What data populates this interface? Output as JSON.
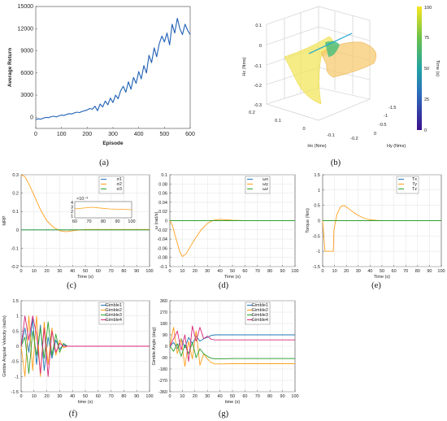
{
  "panel_labels": [
    "(a)",
    "(b)",
    "(c)",
    "(d)",
    "(e)",
    "(f)",
    "(g)"
  ],
  "chart_data": [
    {
      "panel": "(a)",
      "type": "line",
      "xlabel": "Episode",
      "ylabel": "Average Return",
      "xlim": [
        0,
        600
      ],
      "ylim": [
        -1500,
        15000
      ],
      "xticks": [
        "0",
        "100",
        "200",
        "300",
        "400",
        "500",
        "600"
      ],
      "yticks": [
        "0",
        "3000",
        "6000",
        "9000",
        "12000",
        "15000"
      ],
      "series": [
        {
          "color": "#1f5fb4",
          "x": [
            0,
            10,
            20,
            30,
            40,
            50,
            60,
            70,
            80,
            90,
            100,
            110,
            120,
            130,
            140,
            150,
            160,
            170,
            180,
            190,
            200,
            210,
            220,
            230,
            240,
            250,
            260,
            270,
            280,
            290,
            300,
            310,
            320,
            330,
            340,
            350,
            360,
            370,
            380,
            390,
            400,
            410,
            420,
            430,
            440,
            450,
            460,
            470,
            480,
            490,
            500,
            510,
            520,
            530,
            540,
            550,
            560,
            570,
            580,
            590,
            600
          ],
          "y": [
            -300,
            -200,
            -250,
            -100,
            0,
            -50,
            100,
            150,
            50,
            200,
            300,
            250,
            400,
            500,
            450,
            600,
            700,
            650,
            800,
            900,
            1000,
            1200,
            1100,
            1500,
            900,
            1800,
            1400,
            2200,
            1700,
            2600,
            2000,
            3000,
            2500,
            3600,
            4200,
            3400,
            4800,
            3800,
            5400,
            4600,
            6200,
            5200,
            7000,
            6000,
            8400,
            7400,
            9400,
            8200,
            10000,
            11000,
            10200,
            11400,
            9800,
            12600,
            11400,
            13400,
            12000,
            11200,
            12600,
            11800,
            11200
          ]
        }
      ]
    },
    {
      "panel": "(b)",
      "type": "surface3d",
      "xlabel": "Hx (Nms)",
      "ylabel": "Hy (Nms)",
      "zlabel": "Hz (Nms)",
      "colorbar_label": "Time (s)",
      "colorbar_range": [
        0,
        100
      ],
      "colorbar_ticks": [
        "100",
        "75",
        "50",
        "25",
        "0"
      ],
      "x_ticks": [
        "0.2",
        "0.1",
        "0",
        "-0.1",
        "-0.2"
      ],
      "y_ticks": [
        "-1.5",
        "-1",
        "-0.5",
        "0"
      ],
      "z_ticks": [
        "0.1",
        "0",
        "-0.1",
        "-0.2",
        "-0.3"
      ]
    },
    {
      "panel": "(c)",
      "type": "line",
      "xlabel": "Time (s)",
      "ylabel": "MRP",
      "xlim": [
        0,
        100
      ],
      "ylim": [
        -0.2,
        0.3
      ],
      "xticks": [
        "0",
        "10",
        "20",
        "30",
        "40",
        "50",
        "60",
        "70",
        "80",
        "90",
        "100"
      ],
      "yticks": [
        "0.3",
        "0.2",
        "0.1",
        "0",
        "-0.1",
        "-0.2"
      ],
      "legend": [
        "σ1",
        "σ2",
        "σ3"
      ],
      "inset": {
        "multiplier": "×10⁻³",
        "xticks": [
          "60",
          "70",
          "80",
          "90",
          "100"
        ],
        "yticks": [
          "4",
          "3",
          "2",
          "1"
        ]
      },
      "series": [
        {
          "name": "σ1",
          "color": "#1f77b4",
          "x": [
            0,
            100
          ],
          "y": [
            0,
            0
          ]
        },
        {
          "name": "σ2",
          "color": "#ff9f1c",
          "x": [
            0,
            3,
            6,
            10,
            15,
            20,
            25,
            30,
            35,
            40,
            50,
            60,
            100
          ],
          "y": [
            0.3,
            0.29,
            0.25,
            0.19,
            0.11,
            0.05,
            0.015,
            -0.005,
            -0.01,
            -0.005,
            0.002,
            0.002,
            0.002
          ]
        },
        {
          "name": "σ3",
          "color": "#2ca02c",
          "x": [
            0,
            100
          ],
          "y": [
            0,
            0
          ]
        }
      ]
    },
    {
      "panel": "(d)",
      "type": "line",
      "xlabel": "Time (s)",
      "ylabel": "ω (rad/s)",
      "xlim": [
        0,
        100
      ],
      "ylim": [
        -0.1,
        0.1
      ],
      "xticks": [
        "0",
        "10",
        "20",
        "30",
        "40",
        "50",
        "60",
        "70",
        "80",
        "90",
        "100"
      ],
      "yticks": [
        "0.1",
        "0.08",
        "0.06",
        "0.04",
        "0.02",
        "0",
        "-0.02",
        "-0.04",
        "-0.06",
        "-0.08",
        "-0.1"
      ],
      "legend": [
        "ωx",
        "ωy",
        "ωz"
      ],
      "series": [
        {
          "name": "ωx",
          "color": "#1f77b4",
          "x": [
            0,
            100
          ],
          "y": [
            0,
            0
          ]
        },
        {
          "name": "ωy",
          "color": "#ff9f1c",
          "x": [
            0,
            2,
            5,
            8,
            10,
            13,
            16,
            20,
            25,
            30,
            35,
            40,
            45,
            50,
            60,
            100
          ],
          "y": [
            0,
            -0.01,
            -0.04,
            -0.068,
            -0.078,
            -0.072,
            -0.058,
            -0.04,
            -0.02,
            -0.006,
            0.001,
            0.003,
            0.002,
            0.001,
            0,
            0
          ]
        },
        {
          "name": "ωz",
          "color": "#2ca02c",
          "x": [
            0,
            100
          ],
          "y": [
            0,
            0
          ]
        }
      ]
    },
    {
      "panel": "(e)",
      "type": "line",
      "xlabel": "Time (s)",
      "ylabel": "Torque (Nm)",
      "xlim": [
        0,
        100
      ],
      "ylim": [
        -1.5,
        1.5
      ],
      "xticks": [
        "0",
        "10",
        "20",
        "30",
        "40",
        "50",
        "60",
        "70",
        "80",
        "90",
        "100"
      ],
      "yticks": [
        "1.5",
        "1",
        "0.5",
        "0",
        "-0.5",
        "-1",
        "-1.5"
      ],
      "legend": [
        "Tx",
        "Ty",
        "Tz"
      ],
      "series": [
        {
          "name": "Tx",
          "color": "#1f77b4",
          "x": [
            0,
            100
          ],
          "y": [
            0,
            0
          ]
        },
        {
          "name": "Ty",
          "color": "#ff9f1c",
          "x": [
            0,
            2,
            9,
            9.5,
            12,
            15,
            18,
            21,
            25,
            30,
            35,
            40,
            45,
            50,
            60,
            100
          ],
          "y": [
            0,
            -1,
            -1,
            -0.3,
            0.2,
            0.45,
            0.5,
            0.42,
            0.3,
            0.17,
            0.08,
            0.03,
            0.01,
            0,
            0,
            0
          ]
        },
        {
          "name": "Tz",
          "color": "#2ca02c",
          "x": [
            0,
            100
          ],
          "y": [
            0,
            0
          ]
        }
      ]
    },
    {
      "panel": "(f)",
      "type": "line",
      "xlabel": "time (s)",
      "ylabel": "Gimble Angular Velocity (rad/s)",
      "xlim": [
        0,
        100
      ],
      "ylim": [
        -1.5,
        1.5
      ],
      "xticks": [
        "0",
        "10",
        "20",
        "30",
        "40",
        "50",
        "60",
        "70",
        "80",
        "90",
        "100"
      ],
      "yticks": [
        "1.5",
        "1",
        "0.5",
        "0",
        "-0.5",
        "-1",
        "-1.5"
      ],
      "legend": [
        "Gimble1",
        "Gimble2",
        "Gimble3",
        "Gimble4"
      ],
      "series": [
        {
          "name": "Gimble1",
          "color": "#1f77b4",
          "x": [
            0,
            3,
            6,
            9,
            12,
            15,
            18,
            21,
            24,
            27,
            30,
            33,
            36,
            40,
            100
          ],
          "y": [
            0,
            0.6,
            -0.2,
            0.9,
            -0.6,
            0.7,
            -0.8,
            0.3,
            -0.4,
            0.2,
            -0.1,
            0.05,
            0,
            0,
            0
          ]
        },
        {
          "name": "Gimble2",
          "color": "#ff9f1c",
          "x": [
            0,
            3,
            6,
            9,
            12,
            15,
            18,
            21,
            24,
            27,
            30,
            33,
            36,
            40,
            100
          ],
          "y": [
            0,
            -1,
            1,
            -0.8,
            1,
            -1,
            0.8,
            -0.6,
            0.6,
            -0.3,
            0.2,
            -0.05,
            0,
            0,
            0
          ]
        },
        {
          "name": "Gimble3",
          "color": "#2ca02c",
          "x": [
            0,
            3,
            6,
            9,
            12,
            15,
            18,
            21,
            24,
            27,
            30,
            33,
            36,
            40,
            100
          ],
          "y": [
            0,
            0.3,
            -0.9,
            0.5,
            -0.3,
            0.6,
            -0.4,
            0.8,
            -0.3,
            0.4,
            -0.2,
            0.1,
            0,
            0,
            0
          ]
        },
        {
          "name": "Gimble4",
          "color": "#d62778",
          "x": [
            0,
            3,
            6,
            9,
            12,
            15,
            18,
            21,
            24,
            27,
            30,
            33,
            36,
            40,
            100
          ],
          "y": [
            0,
            1,
            0.2,
            1,
            0.4,
            -0.9,
            0.6,
            -1,
            0.5,
            -0.2,
            0.1,
            0,
            0,
            0,
            0
          ]
        }
      ]
    },
    {
      "panel": "(g)",
      "type": "line",
      "xlabel": "time (s)",
      "ylabel": "Gimble Angle (deg)",
      "xlim": [
        0,
        100
      ],
      "ylim": [
        -360,
        360
      ],
      "xticks": [
        "0",
        "10",
        "20",
        "30",
        "40",
        "50",
        "60",
        "70",
        "80",
        "90",
        "100"
      ],
      "yticks": [
        "360",
        "270",
        "180",
        "90",
        "0",
        "-90",
        "-180",
        "-270",
        "-360"
      ],
      "legend": [
        "Gimble1",
        "Gimble2",
        "Gimble3",
        "Gimble4"
      ],
      "series": [
        {
          "name": "Gimble1",
          "color": "#1f77b4",
          "x": [
            0,
            3,
            6,
            9,
            12,
            15,
            18,
            21,
            24,
            27,
            30,
            33,
            36,
            40,
            50,
            60,
            100
          ],
          "y": [
            0,
            30,
            -20,
            60,
            -10,
            70,
            20,
            80,
            40,
            60,
            70,
            85,
            90,
            90,
            90,
            90,
            90
          ]
        },
        {
          "name": "Gimble2",
          "color": "#ff9f1c",
          "x": [
            0,
            3,
            6,
            9,
            12,
            15,
            18,
            21,
            24,
            27,
            30,
            33,
            36,
            40,
            50,
            60,
            100
          ],
          "y": [
            0,
            150,
            -60,
            60,
            -160,
            40,
            -100,
            120,
            -150,
            -60,
            -100,
            -130,
            -140,
            -140,
            -138,
            -138,
            -138
          ]
        },
        {
          "name": "Gimble3",
          "color": "#2ca02c",
          "x": [
            0,
            3,
            6,
            9,
            12,
            15,
            18,
            21,
            24,
            27,
            30,
            33,
            36,
            40,
            50,
            60,
            100
          ],
          "y": [
            0,
            -40,
            20,
            -80,
            10,
            -60,
            30,
            -90,
            -20,
            -60,
            -80,
            -95,
            -100,
            -100,
            -98,
            -98,
            -98
          ]
        },
        {
          "name": "Gimble4",
          "color": "#d62778",
          "x": [
            0,
            3,
            6,
            9,
            12,
            15,
            18,
            21,
            24,
            27,
            30,
            33,
            36,
            40,
            50,
            60,
            100
          ],
          "y": [
            0,
            60,
            120,
            -30,
            90,
            -120,
            160,
            40,
            150,
            60,
            80,
            55,
            50,
            50,
            50,
            50,
            50
          ]
        }
      ]
    }
  ]
}
